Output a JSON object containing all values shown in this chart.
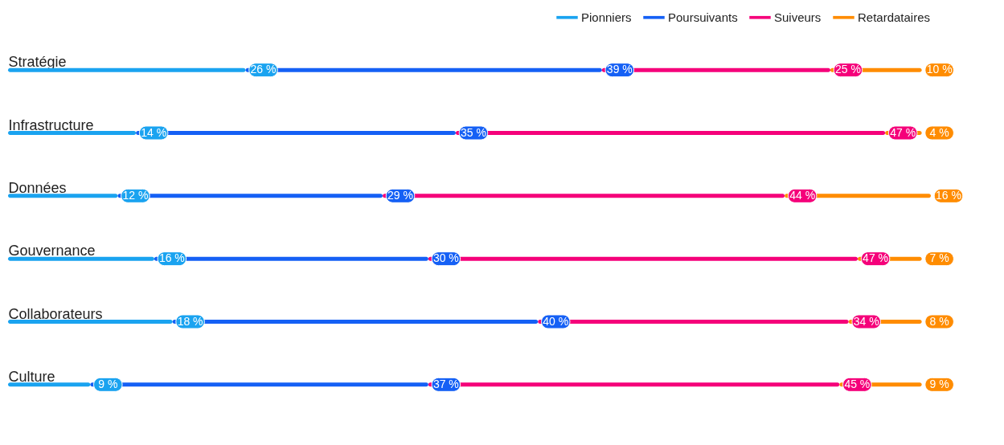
{
  "chart_data": {
    "type": "bar",
    "orientation": "horizontal",
    "stacked": true,
    "categories": [
      "Stratégie",
      "Infrastructure",
      "Données",
      "Gouvernance",
      "Collaborateurs",
      "Culture"
    ],
    "series": [
      {
        "name": "Pionniers",
        "color": "#1aa3f0",
        "values": [
          26,
          14,
          12,
          16,
          18,
          9
        ],
        "value_labels": [
          "26 %",
          "14 %",
          "12 %",
          "16 %",
          "18 %",
          "9 %"
        ]
      },
      {
        "name": "Poursuivants",
        "color": "#1560f5",
        "values": [
          39,
          35,
          29,
          30,
          40,
          37
        ],
        "value_labels": [
          "39 %",
          "35 %",
          "29 %",
          "30 %",
          "40 %",
          "37 %"
        ]
      },
      {
        "name": "Suiveurs",
        "color": "#f5007a",
        "values": [
          25,
          47,
          44,
          47,
          34,
          45
        ],
        "value_labels": [
          "25 %",
          "47 %",
          "44 %",
          "47 %",
          "34 %",
          "45 %"
        ]
      },
      {
        "name": "Retardataires",
        "color": "#ff8c00",
        "values": [
          10,
          4,
          16,
          7,
          8,
          9
        ],
        "value_labels": [
          "10 %",
          "4 %",
          "16 %",
          "7 %",
          "8 %",
          "9 %"
        ]
      }
    ],
    "legend": "top right",
    "tick_labels": "y"
  }
}
